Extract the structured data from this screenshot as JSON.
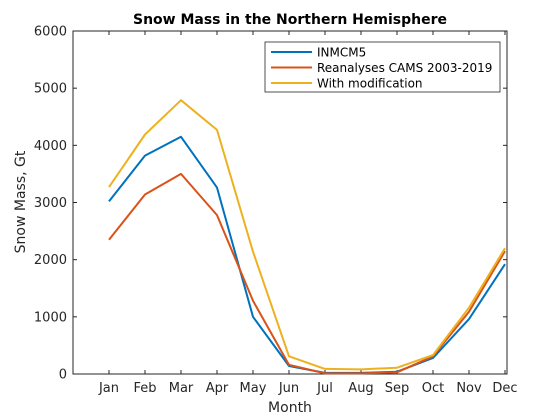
{
  "chart_data": {
    "type": "line",
    "title": "Snow Mass in the Northern Hemisphere",
    "xlabel": "Month",
    "ylabel": "Snow Mass, Gt",
    "categories": [
      "Jan",
      "Feb",
      "Mar",
      "Apr",
      "May",
      "Jun",
      "Jul",
      "Aug",
      "Sep",
      "Oct",
      "Nov",
      "Dec"
    ],
    "ylim": [
      0,
      6000
    ],
    "yticks": [
      "0",
      "1000",
      "2000",
      "3000",
      "4000",
      "5000",
      "6000"
    ],
    "grid": false,
    "legend_position": "top-right",
    "series": [
      {
        "name": "INMCM5",
        "color": "#0072BD",
        "values": [
          3020,
          3820,
          4150,
          3260,
          1000,
          140,
          20,
          20,
          40,
          280,
          960,
          1920
        ]
      },
      {
        "name": "Reanalyses CAMS 2003-2019",
        "color": "#D95319",
        "values": [
          2350,
          3140,
          3500,
          2780,
          1280,
          160,
          10,
          10,
          30,
          310,
          1090,
          2150
        ]
      },
      {
        "name": "With modification",
        "color": "#EDB120",
        "values": [
          3270,
          4190,
          4790,
          4270,
          2140,
          310,
          90,
          80,
          110,
          330,
          1160,
          2200
        ]
      }
    ]
  }
}
